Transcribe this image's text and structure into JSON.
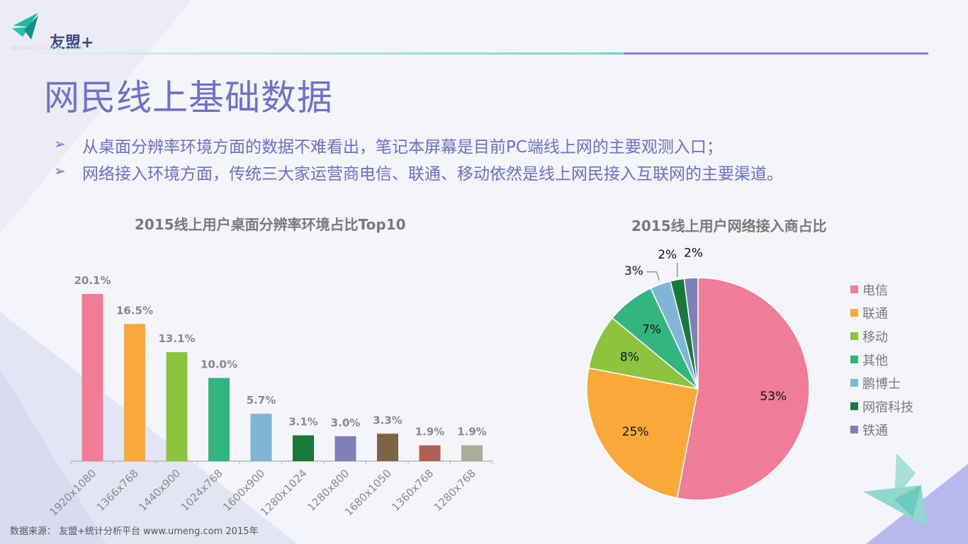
{
  "header": {
    "logo_text": "友盟+",
    "logo_sub": "www.umeng.com"
  },
  "page_title": "网民线上基础数据",
  "bullets": [
    {
      "mark": "➢",
      "text": "从桌面分辨率环境方面的数据不难看出，笔记本屏幕是目前PC端线上网的主要观测入口；"
    },
    {
      "mark": "➢",
      "text": "网络接入环境方面，传统三大家运营商电信、联通、移动依然是线上网民接入互联网的主要渠道。"
    }
  ],
  "chart_data": [
    {
      "type": "bar",
      "title": "2015线上用户桌面分辨率环境占比Top10",
      "categories": [
        "1920x1080",
        "1366x768",
        "1440x900",
        "1024x768",
        "1600x900",
        "1280x1024",
        "1280x800",
        "1680x1050",
        "1360x768",
        "1280x768"
      ],
      "values": [
        20.1,
        16.5,
        13.1,
        10.0,
        5.7,
        3.1,
        3.0,
        3.3,
        1.9,
        1.9
      ],
      "labels": [
        "20.1%",
        "16.5%",
        "13.1%",
        "10.0%",
        "5.7%",
        "3.1%",
        "3.0%",
        "3.3%",
        "1.9%",
        "1.9%"
      ],
      "colors": [
        "#f07c98",
        "#f8a93a",
        "#8dc43e",
        "#33b57f",
        "#7fb6d6",
        "#177a3a",
        "#8080b8",
        "#7d6447",
        "#b06050",
        "#acac98"
      ],
      "unit": "%",
      "ylim": [
        0,
        20.1
      ]
    },
    {
      "type": "pie",
      "title": "2015线上用户网络接入商占比",
      "slices": [
        {
          "label": "电信",
          "value": 53,
          "display": "53%",
          "color": "#f07c98"
        },
        {
          "label": "联通",
          "value": 25,
          "display": "25%",
          "color": "#f8a93a"
        },
        {
          "label": "移动",
          "value": 8,
          "display": "8%",
          "color": "#8dc43e"
        },
        {
          "label": "其他",
          "value": 7,
          "display": "7%",
          "color": "#33b57f"
        },
        {
          "label": "鹏博士",
          "value": 3,
          "display": "3%",
          "color": "#7fb6d6"
        },
        {
          "label": "网宿科技",
          "value": 2,
          "display": "2%",
          "color": "#177a3a"
        },
        {
          "label": "铁通",
          "value": 2,
          "display": "2%",
          "color": "#8080b8"
        }
      ],
      "legend_position": "right"
    }
  ],
  "source": "数据来源： 友盟+统计分析平台 www.umeng.com 2015年"
}
